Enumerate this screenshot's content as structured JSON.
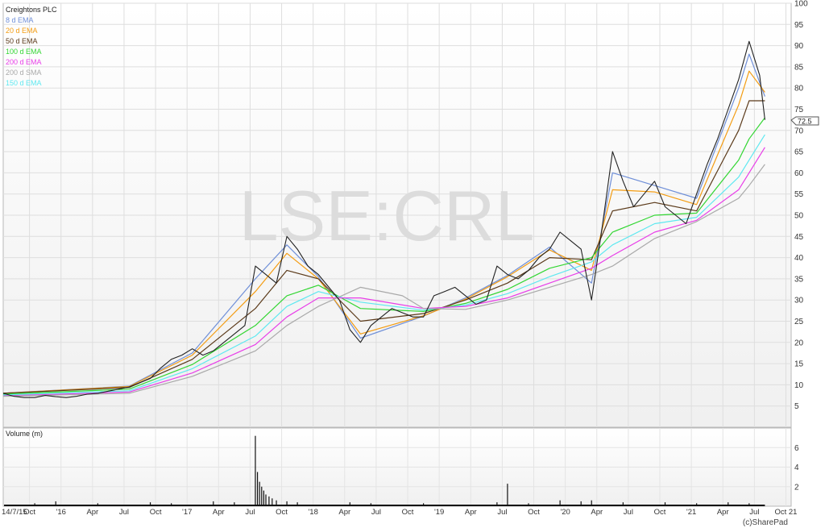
{
  "watermark": "LSE:CRL",
  "copyright": "(c)SharePad",
  "price_badge": "72.5",
  "legend": [
    {
      "label": "Creightons PLC",
      "color": "#222222"
    },
    {
      "label": "8 d EMA",
      "color": "#6f8fd8"
    },
    {
      "label": "20 d EMA",
      "color": "#f39c12"
    },
    {
      "label": "50 d EMA",
      "color": "#5b3a1a"
    },
    {
      "label": "100 d EMA",
      "color": "#33d633"
    },
    {
      "label": "200 d EMA",
      "color": "#e83ee8"
    },
    {
      "label": "200 d SMA",
      "color": "#a9a9a9"
    },
    {
      "label": "150 d EMA",
      "color": "#5ee8f0"
    }
  ],
  "volume_label": "Volume (m)",
  "chart_data": [
    {
      "type": "line",
      "title": "Creightons PLC",
      "y_axis": {
        "ticks": [
          5,
          10,
          15,
          20,
          25,
          30,
          35,
          40,
          45,
          50,
          55,
          60,
          65,
          70,
          75,
          80,
          85,
          90,
          95,
          100
        ],
        "ylim": [
          0,
          100
        ],
        "position": "right"
      },
      "x_axis": {
        "ticks": [
          "14/7/15",
          "Oct",
          "'16",
          "Apr",
          "Jul",
          "Oct",
          "'17",
          "Apr",
          "Jul",
          "Oct",
          "'18",
          "Apr",
          "Jul",
          "Oct",
          "'19",
          "Apr",
          "Jul",
          "Oct",
          "'20",
          "Apr",
          "Jul",
          "Oct",
          "'21",
          "Apr",
          "Jul",
          "Oct 21"
        ],
        "range_months": [
          0,
          75
        ]
      },
      "grid": true,
      "legend_placement": "top-left",
      "series": [
        {
          "name": "Creightons PLC",
          "color": "#222222",
          "points": [
            [
              0,
              8
            ],
            [
              1,
              7.3
            ],
            [
              2,
              7
            ],
            [
              3,
              7
            ],
            [
              4,
              7.5
            ],
            [
              5,
              7.2
            ],
            [
              6,
              7
            ],
            [
              7,
              7.3
            ],
            [
              8,
              7.8
            ],
            [
              9,
              8
            ],
            [
              10,
              8.5
            ],
            [
              11,
              9
            ],
            [
              12,
              9.5
            ],
            [
              13,
              10.5
            ],
            [
              14,
              11.5
            ],
            [
              15,
              14
            ],
            [
              16,
              16
            ],
            [
              17,
              17
            ],
            [
              18,
              18.5
            ],
            [
              19,
              17
            ],
            [
              20,
              18
            ],
            [
              21,
              20
            ],
            [
              22,
              22
            ],
            [
              23,
              24
            ],
            [
              24,
              38
            ],
            [
              25,
              36
            ],
            [
              26,
              34
            ],
            [
              27,
              45
            ],
            [
              28,
              42
            ],
            [
              29,
              38
            ],
            [
              30,
              36
            ],
            [
              31,
              33
            ],
            [
              32,
              30
            ],
            [
              33,
              23
            ],
            [
              34,
              20
            ],
            [
              35,
              24
            ],
            [
              36,
              26
            ],
            [
              37,
              28
            ],
            [
              38,
              27
            ],
            [
              39,
              26
            ],
            [
              40,
              26
            ],
            [
              41,
              31
            ],
            [
              42,
              32
            ],
            [
              43,
              33
            ],
            [
              44,
              31
            ],
            [
              45,
              29
            ],
            [
              46,
              30
            ],
            [
              47,
              38
            ],
            [
              48,
              36
            ],
            [
              49,
              35
            ],
            [
              50,
              37
            ],
            [
              51,
              40
            ],
            [
              52,
              42
            ],
            [
              53,
              46
            ],
            [
              54,
              44
            ],
            [
              55,
              42
            ],
            [
              56,
              30
            ],
            [
              57,
              47
            ],
            [
              58,
              65
            ],
            [
              59,
              58
            ],
            [
              60,
              52
            ],
            [
              61,
              55
            ],
            [
              62,
              58
            ],
            [
              63,
              52
            ],
            [
              64,
              50
            ],
            [
              65,
              48
            ],
            [
              66,
              55
            ],
            [
              67,
              62
            ],
            [
              68,
              68
            ],
            [
              69,
              75
            ],
            [
              70,
              82
            ],
            [
              71,
              91
            ],
            [
              72,
              83
            ],
            [
              72.5,
              72.5
            ]
          ]
        },
        {
          "name": "8 d EMA",
          "color": "#6f8fd8",
          "points": [
            [
              0,
              8
            ],
            [
              12,
              9.7
            ],
            [
              18,
              17.5
            ],
            [
              24,
              35
            ],
            [
              27,
              43
            ],
            [
              30,
              35.5
            ],
            [
              34,
              21
            ],
            [
              40,
              26.2
            ],
            [
              44,
              30.5
            ],
            [
              48,
              35.8
            ],
            [
              52,
              42.5
            ],
            [
              56,
              34
            ],
            [
              58,
              60
            ],
            [
              62,
              57
            ],
            [
              66,
              54
            ],
            [
              70,
              80
            ],
            [
              71,
              88
            ],
            [
              72.5,
              78
            ]
          ]
        },
        {
          "name": "20 d EMA",
          "color": "#f39c12",
          "points": [
            [
              0,
              8
            ],
            [
              12,
              9.6
            ],
            [
              18,
              17
            ],
            [
              24,
              32
            ],
            [
              27,
              41
            ],
            [
              30,
              35
            ],
            [
              34,
              22
            ],
            [
              40,
              26.3
            ],
            [
              44,
              30.2
            ],
            [
              48,
              35.5
            ],
            [
              52,
              41.8
            ],
            [
              56,
              37
            ],
            [
              58,
              56
            ],
            [
              62,
              55.5
            ],
            [
              66,
              52.5
            ],
            [
              70,
              76
            ],
            [
              71,
              84
            ],
            [
              72.5,
              79
            ]
          ]
        },
        {
          "name": "50 d EMA",
          "color": "#5b3a1a",
          "points": [
            [
              0,
              8
            ],
            [
              12,
              9.4
            ],
            [
              18,
              16
            ],
            [
              24,
              28
            ],
            [
              27,
              37
            ],
            [
              30,
              35
            ],
            [
              34,
              25
            ],
            [
              40,
              26.8
            ],
            [
              44,
              30
            ],
            [
              48,
              34
            ],
            [
              52,
              40
            ],
            [
              56,
              39.5
            ],
            [
              58,
              51
            ],
            [
              62,
              53
            ],
            [
              66,
              51
            ],
            [
              70,
              70
            ],
            [
              71,
              77
            ],
            [
              72.5,
              77
            ]
          ]
        },
        {
          "name": "100 d EMA",
          "color": "#33d633",
          "points": [
            [
              0,
              7.8
            ],
            [
              12,
              9
            ],
            [
              18,
              14.8
            ],
            [
              24,
              24
            ],
            [
              27,
              31
            ],
            [
              30,
              33.5
            ],
            [
              34,
              28
            ],
            [
              40,
              27.3
            ],
            [
              44,
              29.2
            ],
            [
              48,
              32.5
            ],
            [
              52,
              37.5
            ],
            [
              56,
              40
            ],
            [
              58,
              46
            ],
            [
              62,
              50
            ],
            [
              66,
              50.5
            ],
            [
              70,
              63
            ],
            [
              71,
              68
            ],
            [
              72.5,
              73
            ]
          ]
        },
        {
          "name": "150 d EMA",
          "color": "#5ee8f0",
          "points": [
            [
              0,
              7.6
            ],
            [
              12,
              8.6
            ],
            [
              18,
              13.8
            ],
            [
              24,
              21.5
            ],
            [
              27,
              28.5
            ],
            [
              30,
              32
            ],
            [
              34,
              29.5
            ],
            [
              40,
              27.6
            ],
            [
              44,
              28.8
            ],
            [
              48,
              31.5
            ],
            [
              52,
              35.5
            ],
            [
              56,
              39
            ],
            [
              58,
              43
            ],
            [
              62,
              48
            ],
            [
              66,
              49.5
            ],
            [
              70,
              59
            ],
            [
              71,
              63
            ],
            [
              72.5,
              69
            ]
          ]
        },
        {
          "name": "200 d EMA",
          "color": "#e83ee8",
          "points": [
            [
              0,
              7.4
            ],
            [
              12,
              8.3
            ],
            [
              18,
              12.8
            ],
            [
              24,
              19.5
            ],
            [
              27,
              26
            ],
            [
              30,
              30.5
            ],
            [
              34,
              30.5
            ],
            [
              40,
              28
            ],
            [
              44,
              28.5
            ],
            [
              48,
              30.5
            ],
            [
              52,
              34
            ],
            [
              56,
              37.5
            ],
            [
              58,
              40.5
            ],
            [
              62,
              46
            ],
            [
              66,
              48.8
            ],
            [
              70,
              56
            ],
            [
              71,
              60
            ],
            [
              72.5,
              66
            ]
          ]
        },
        {
          "name": "200 d SMA",
          "color": "#a9a9a9",
          "points": [
            [
              0,
              7.3
            ],
            [
              12,
              8
            ],
            [
              18,
              12
            ],
            [
              24,
              18
            ],
            [
              27,
              24
            ],
            [
              30,
              28.5
            ],
            [
              34,
              33
            ],
            [
              38,
              31
            ],
            [
              40,
              28
            ],
            [
              44,
              27.8
            ],
            [
              48,
              30
            ],
            [
              52,
              33
            ],
            [
              56,
              36
            ],
            [
              58,
              38
            ],
            [
              62,
              44.5
            ],
            [
              66,
              48.5
            ],
            [
              70,
              54
            ],
            [
              71,
              57
            ],
            [
              72.5,
              62
            ]
          ]
        }
      ]
    },
    {
      "type": "bar",
      "title": "Volume (m)",
      "y_axis": {
        "ticks": [
          2,
          4,
          6
        ],
        "ylim": [
          0,
          8
        ],
        "position": "right"
      },
      "spikes": [
        [
          3,
          0.3
        ],
        [
          5,
          0.5
        ],
        [
          9,
          0.3
        ],
        [
          14,
          0.4
        ],
        [
          16,
          0.3
        ],
        [
          20,
          0.5
        ],
        [
          22,
          0.4
        ],
        [
          24,
          7.2
        ],
        [
          24.2,
          3.5
        ],
        [
          24.4,
          2.5
        ],
        [
          24.6,
          2
        ],
        [
          24.8,
          1.6
        ],
        [
          25,
          1.2
        ],
        [
          25.3,
          1
        ],
        [
          25.6,
          0.8
        ],
        [
          26,
          0.6
        ],
        [
          27,
          0.5
        ],
        [
          28,
          0.4
        ],
        [
          33,
          0.4
        ],
        [
          35,
          0.3
        ],
        [
          40,
          0.3
        ],
        [
          47,
          0.4
        ],
        [
          48,
          2.3
        ],
        [
          50,
          0.3
        ],
        [
          53,
          0.6
        ],
        [
          55,
          0.5
        ],
        [
          56,
          0.6
        ],
        [
          59,
          0.4
        ],
        [
          63,
          0.4
        ],
        [
          66,
          0.3
        ],
        [
          69,
          0.4
        ],
        [
          71,
          0.3
        ]
      ]
    }
  ]
}
